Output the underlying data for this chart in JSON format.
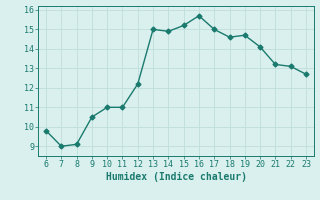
{
  "x": [
    6,
    7,
    8,
    9,
    10,
    11,
    12,
    13,
    14,
    15,
    16,
    17,
    18,
    19,
    20,
    21,
    22,
    23
  ],
  "y": [
    9.8,
    9.0,
    9.1,
    10.5,
    11.0,
    11.0,
    12.2,
    15.0,
    14.9,
    15.2,
    15.7,
    15.0,
    14.6,
    14.7,
    14.1,
    13.2,
    13.1,
    12.7
  ],
  "xlim": [
    5.5,
    23.5
  ],
  "ylim": [
    8.5,
    16.2
  ],
  "xticks": [
    6,
    7,
    8,
    9,
    10,
    11,
    12,
    13,
    14,
    15,
    16,
    17,
    18,
    19,
    20,
    21,
    22,
    23
  ],
  "yticks": [
    9,
    10,
    11,
    12,
    13,
    14,
    15,
    16
  ],
  "xlabel": "Humidex (Indice chaleur)",
  "line_color": "#1a7a6e",
  "bg_color": "#d9f0ee",
  "grid_color": "#c0deda",
  "marker": "D",
  "markersize": 2.5,
  "linewidth": 1.0
}
